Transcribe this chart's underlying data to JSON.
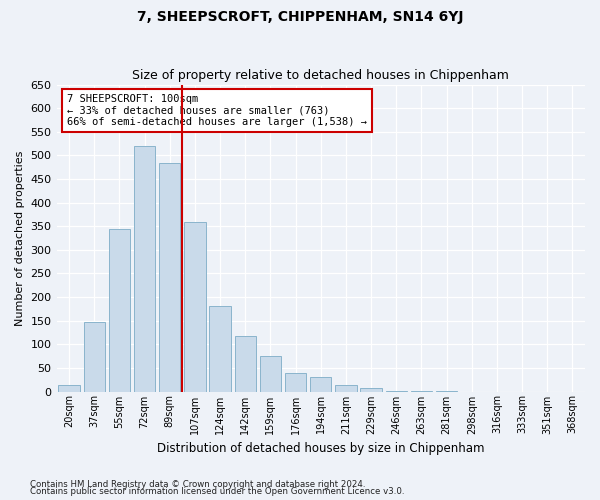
{
  "title": "7, SHEEPSCROFT, CHIPPENHAM, SN14 6YJ",
  "subtitle": "Size of property relative to detached houses in Chippenham",
  "xlabel": "Distribution of detached houses by size in Chippenham",
  "ylabel": "Number of detached properties",
  "bar_color": "#c9daea",
  "bar_edge_color": "#8ab4cc",
  "background_color": "#eef2f8",
  "fig_background_color": "#eef2f8",
  "grid_color": "#ffffff",
  "annotation_box_edge_color": "#cc0000",
  "annotation_text_line1": "7 SHEEPSCROFT: 100sqm",
  "annotation_text_line2": "← 33% of detached houses are smaller (763)",
  "annotation_text_line3": "66% of semi-detached houses are larger (1,538) →",
  "vline_x_index": 5,
  "vline_color": "#cc0000",
  "categories": [
    "20sqm",
    "37sqm",
    "55sqm",
    "72sqm",
    "89sqm",
    "107sqm",
    "124sqm",
    "142sqm",
    "159sqm",
    "176sqm",
    "194sqm",
    "211sqm",
    "229sqm",
    "246sqm",
    "263sqm",
    "281sqm",
    "298sqm",
    "316sqm",
    "333sqm",
    "351sqm",
    "368sqm"
  ],
  "values": [
    13,
    148,
    345,
    520,
    483,
    358,
    181,
    118,
    75,
    40,
    30,
    13,
    7,
    2,
    1,
    1,
    0,
    0,
    0,
    0,
    0
  ],
  "ylim": [
    0,
    650
  ],
  "yticks": [
    0,
    50,
    100,
    150,
    200,
    250,
    300,
    350,
    400,
    450,
    500,
    550,
    600,
    650
  ],
  "footnote1": "Contains HM Land Registry data © Crown copyright and database right 2024.",
  "footnote2": "Contains public sector information licensed under the Open Government Licence v3.0."
}
